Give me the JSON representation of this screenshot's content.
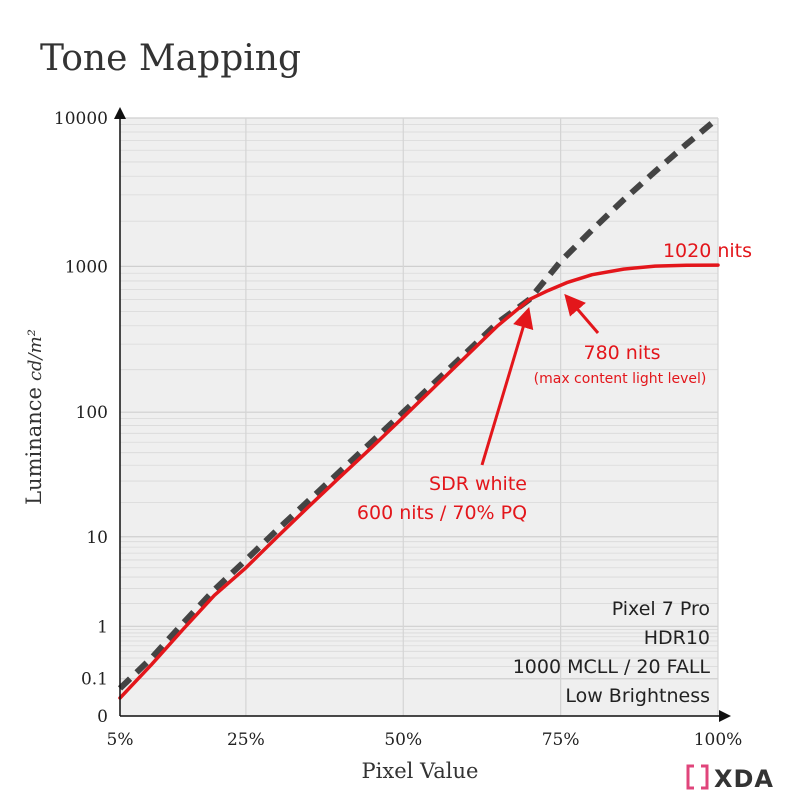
{
  "colors": {
    "background": "#ffffff",
    "plot_bg": "#efefef",
    "grid": "#d9d9d9",
    "reference": "#444444",
    "curve": "#e3161b",
    "axis": "#111111",
    "logo_accent": "#e0457b"
  },
  "chart_data": {
    "type": "line",
    "title": "Tone Mapping",
    "xlabel": "Pixel Value",
    "ylabel": "Luminance",
    "ylabel_unit": "cd/m²",
    "x_ticks": [
      5,
      25,
      50,
      75,
      100
    ],
    "x_tick_labels": [
      "5%",
      "25%",
      "50%",
      "75%",
      "100%"
    ],
    "y_ticks": [
      0,
      0.1,
      1,
      10,
      100,
      1000,
      10000
    ],
    "y_tick_labels": [
      "0",
      "0.1",
      "1",
      "10",
      "100",
      "1000",
      "10000"
    ],
    "xlim": [
      5,
      100
    ],
    "ylim": [
      0,
      10000
    ],
    "y_scale": "pq",
    "grid": true,
    "series": [
      {
        "style": "dashed",
        "color": "#444444",
        "points": [
          [
            5,
            0.05
          ],
          [
            10,
            0.3
          ],
          [
            15,
            1.1
          ],
          [
            20,
            2.9
          ],
          [
            25,
            6.0
          ],
          [
            30,
            11.6
          ],
          [
            35,
            20.8
          ],
          [
            40,
            36.0
          ],
          [
            45,
            60.5
          ],
          [
            50,
            100
          ],
          [
            55,
            163
          ],
          [
            60,
            262
          ],
          [
            65,
            420
          ],
          [
            70,
            600
          ],
          [
            75,
            1080
          ],
          [
            80,
            1750
          ],
          [
            85,
            2780
          ],
          [
            90,
            4310
          ],
          [
            95,
            6600
          ],
          [
            100,
            10000
          ]
        ]
      },
      {
        "style": "solid",
        "color": "#e3161b",
        "points": [
          [
            5,
            0.02
          ],
          [
            10,
            0.22
          ],
          [
            15,
            0.9
          ],
          [
            20,
            2.5
          ],
          [
            25,
            5.0
          ],
          [
            30,
            10.0
          ],
          [
            35,
            18.5
          ],
          [
            40,
            32.5
          ],
          [
            45,
            55
          ],
          [
            50,
            92
          ],
          [
            55,
            152
          ],
          [
            60,
            248
          ],
          [
            65,
            400
          ],
          [
            70,
            600
          ],
          [
            73,
            690
          ],
          [
            76,
            780
          ],
          [
            80,
            880
          ],
          [
            85,
            960
          ],
          [
            90,
            1005
          ],
          [
            95,
            1018
          ],
          [
            100,
            1020
          ]
        ]
      }
    ],
    "annotations": [
      {
        "lines": [
          "1020 nits"
        ],
        "point": [
          100,
          1020
        ]
      },
      {
        "lines": [
          "780 nits",
          "(max content light level)"
        ],
        "point": [
          76,
          780
        ]
      },
      {
        "lines": [
          "SDR white",
          "600 nits / 70% PQ"
        ],
        "point": [
          70,
          600
        ]
      }
    ],
    "info_box": {
      "lines": [
        "Pixel 7 Pro",
        "HDR10",
        "1000 MCLL / 20 FALL",
        "Low Brightness"
      ],
      "placement": "bottom-right"
    }
  },
  "logo": {
    "text": "XDA"
  }
}
